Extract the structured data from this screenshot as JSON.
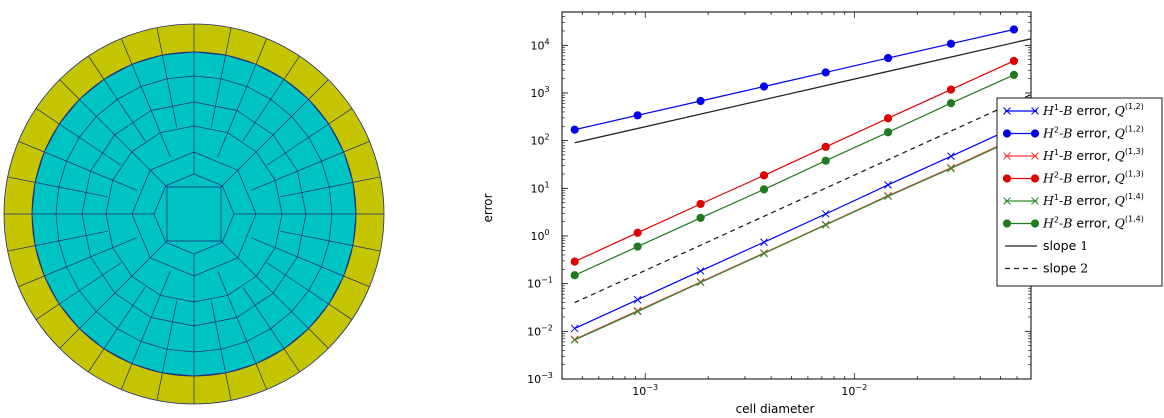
{
  "mesh": {
    "colors": {
      "inner": "#00c4c4",
      "outer": "#c4c400",
      "edges": "#1f2a7a"
    }
  },
  "chart_data": {
    "type": "line",
    "title": "",
    "xlabel": "cell diameter",
    "ylabel": "error",
    "xscale": "log",
    "yscale": "log",
    "xlim": [
      0.0004,
      0.07
    ],
    "ylim": [
      0.001,
      50000
    ],
    "x_ticks": [
      {
        "value": 0.001,
        "base": "10",
        "exp": "−3"
      },
      {
        "value": 0.01,
        "base": "10",
        "exp": "−2"
      }
    ],
    "y_ticks": [
      {
        "value": 0.001,
        "base": "10",
        "exp": "−3"
      },
      {
        "value": 0.01,
        "base": "10",
        "exp": "−2"
      },
      {
        "value": 0.1,
        "base": "10",
        "exp": "−1"
      },
      {
        "value": 1,
        "base": "10",
        "exp": "0"
      },
      {
        "value": 10,
        "base": "10",
        "exp": "1"
      },
      {
        "value": 100,
        "base": "10",
        "exp": "2"
      },
      {
        "value": 1000,
        "base": "10",
        "exp": "3"
      },
      {
        "value": 10000,
        "base": "10",
        "exp": "4"
      }
    ],
    "grid": false,
    "legend_position": "right",
    "x": [
      0.00046,
      0.00092,
      0.00184,
      0.0037,
      0.0073,
      0.0145,
      0.029,
      0.058
    ],
    "series": [
      {
        "norm": "H",
        "sup": "1",
        "suffix": "-B",
        "err": " error, ",
        "q": "Q",
        "qsup": "(1,2)",
        "color": "#0000ff",
        "marker": "x",
        "values": [
          0.0115,
          0.046,
          0.185,
          0.74,
          2.9,
          11.8,
          47,
          190
        ]
      },
      {
        "norm": "H",
        "sup": "2",
        "suffix": "-B",
        "err": " error, ",
        "q": "Q",
        "qsup": "(1,2)",
        "color": "#0000ee",
        "marker": "dot",
        "values": [
          170,
          340,
          680,
          1370,
          2700,
          5400,
          10800,
          21500
        ]
      },
      {
        "norm": "H",
        "sup": "1",
        "suffix": "-B",
        "err": " error, ",
        "q": "Q",
        "qsup": "(1,3)",
        "color": "#ff3b3b",
        "marker": "x",
        "values": [
          0.0068,
          0.027,
          0.109,
          0.44,
          1.74,
          7,
          27,
          110
        ]
      },
      {
        "norm": "H",
        "sup": "2",
        "suffix": "-B",
        "err": " error, ",
        "q": "Q",
        "qsup": "(1,3)",
        "color": "#e00000",
        "marker": "dot",
        "values": [
          0.29,
          1.17,
          4.7,
          18.7,
          74,
          295,
          1180,
          4700
        ]
      },
      {
        "norm": "H",
        "sup": "1",
        "suffix": "-B",
        "err": " error, ",
        "q": "Q",
        "qsup": "(1,4)",
        "color": "#2e8b2e",
        "marker": "x",
        "values": [
          0.0066,
          0.026,
          0.106,
          0.43,
          1.7,
          6.8,
          26,
          105
        ]
      },
      {
        "norm": "H",
        "sup": "2",
        "suffix": "-B",
        "err": " error, ",
        "q": "Q",
        "qsup": "(1,4)",
        "color": "#1f7a1f",
        "marker": "dot",
        "values": [
          0.15,
          0.6,
          2.4,
          9.5,
          38,
          150,
          610,
          2400
        ]
      }
    ],
    "reference_lines": [
      {
        "label_pre": "slope ",
        "label_num": "1",
        "style": "solid",
        "color": "#222222",
        "x": [
          0.00046,
          0.07
        ],
        "values": [
          90,
          13700
        ]
      },
      {
        "label_pre": "slope ",
        "label_num": "2",
        "style": "dashed",
        "color": "#222222",
        "x": [
          0.00046,
          0.07
        ],
        "values": [
          0.04,
          925
        ]
      }
    ]
  }
}
